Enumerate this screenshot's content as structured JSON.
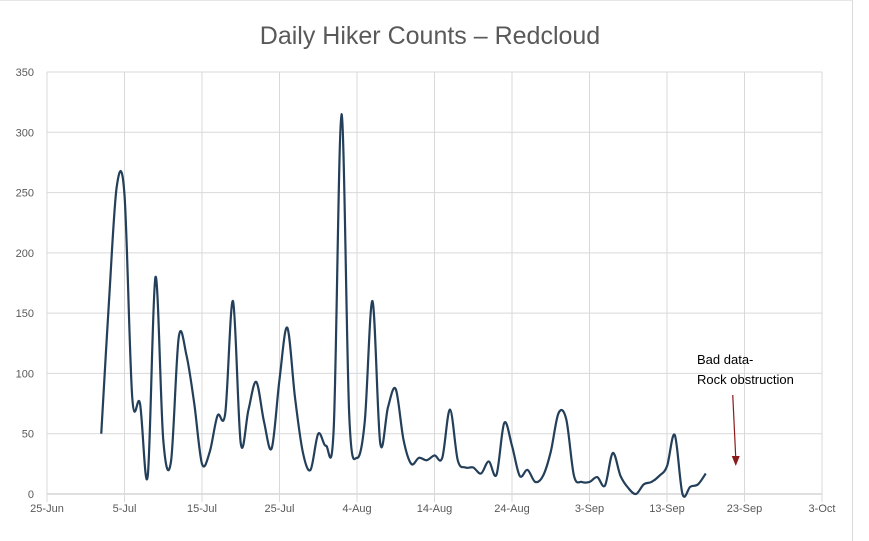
{
  "chart_data": {
    "type": "line",
    "title": "Daily Hiker Counts – Redcloud",
    "xlabel": "",
    "ylabel": "",
    "ylim": [
      0,
      350
    ],
    "yticks": [
      0,
      50,
      100,
      150,
      200,
      250,
      300,
      350
    ],
    "x_axis": {
      "start_label": "25-Jun",
      "range_days": [
        0,
        100
      ],
      "tick_labels": [
        "25-Jun",
        "5-Jul",
        "15-Jul",
        "25-Jul",
        "4-Aug",
        "14-Aug",
        "24-Aug",
        "3-Sep",
        "13-Sep",
        "23-Sep",
        "3-Oct"
      ]
    },
    "grid": true,
    "series": [
      {
        "name": "Daily Hiker Counts",
        "color": "#243f5a",
        "start_day_offset": 7,
        "start_date": "2-Jul",
        "values": [
          50,
          160,
          255,
          248,
          80,
          75,
          15,
          180,
          45,
          27,
          130,
          115,
          75,
          25,
          35,
          65,
          67,
          160,
          42,
          70,
          93,
          60,
          38,
          95,
          138,
          80,
          35,
          20,
          50,
          40,
          55,
          315,
          65,
          30,
          60,
          160,
          42,
          72,
          87,
          45,
          25,
          30,
          28,
          32,
          30,
          70,
          28,
          22,
          22,
          17,
          27,
          16,
          59,
          40,
          15,
          20,
          10,
          15,
          35,
          67,
          62,
          15,
          10,
          10,
          14,
          7,
          34,
          15,
          5,
          0,
          8,
          10,
          15,
          23,
          49,
          0,
          6,
          8,
          17
        ]
      }
    ],
    "annotations": [
      {
        "line1": "Bad data-",
        "line2": "Rock obstruction",
        "arrow_color": "#8b1a1a",
        "points_to_day": 89
      }
    ]
  }
}
